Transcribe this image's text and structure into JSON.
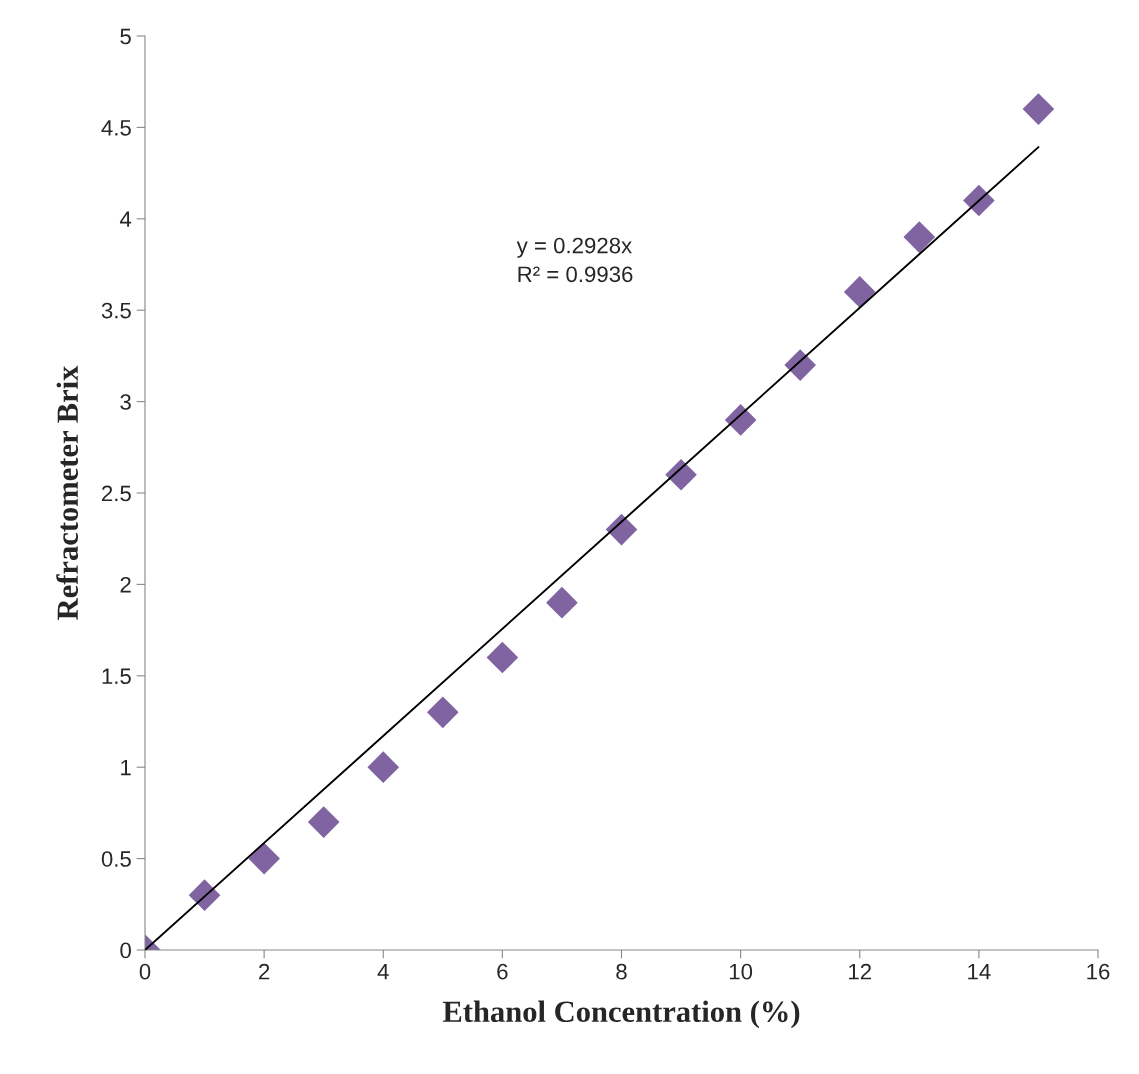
{
  "chart_data": {
    "type": "scatter",
    "xlabel": "Ethanol Concentration (%)",
    "ylabel": "Refractometer Brix",
    "annotations": [
      "y = 0.2928x",
      "R² = 0.9936"
    ],
    "series": [
      {
        "color": "#8064a2",
        "marker": "diamond",
        "x": [
          0,
          1,
          2,
          3,
          4,
          5,
          6,
          7,
          8,
          9,
          10,
          11,
          12,
          13,
          14,
          15
        ],
        "values": [
          0,
          0.3,
          0.5,
          0.7,
          1.0,
          1.3,
          1.6,
          1.9,
          2.3,
          2.6,
          2.9,
          3.2,
          3.6,
          3.9,
          4.1,
          4.6
        ]
      },
      {
        "type": "line",
        "color": "#000000",
        "marker": "none",
        "x": [
          0,
          15
        ],
        "values": [
          0,
          4.392
        ]
      }
    ],
    "xlim": [
      0,
      16
    ],
    "xticks": [
      0,
      2,
      4,
      6,
      8,
      10,
      12,
      14,
      16
    ],
    "ylim": [
      0,
      5
    ],
    "yticks": [
      0,
      0.5,
      1,
      1.5,
      2,
      2.5,
      3,
      3.5,
      4,
      4.5,
      5
    ],
    "grid": false,
    "legend": false
  }
}
